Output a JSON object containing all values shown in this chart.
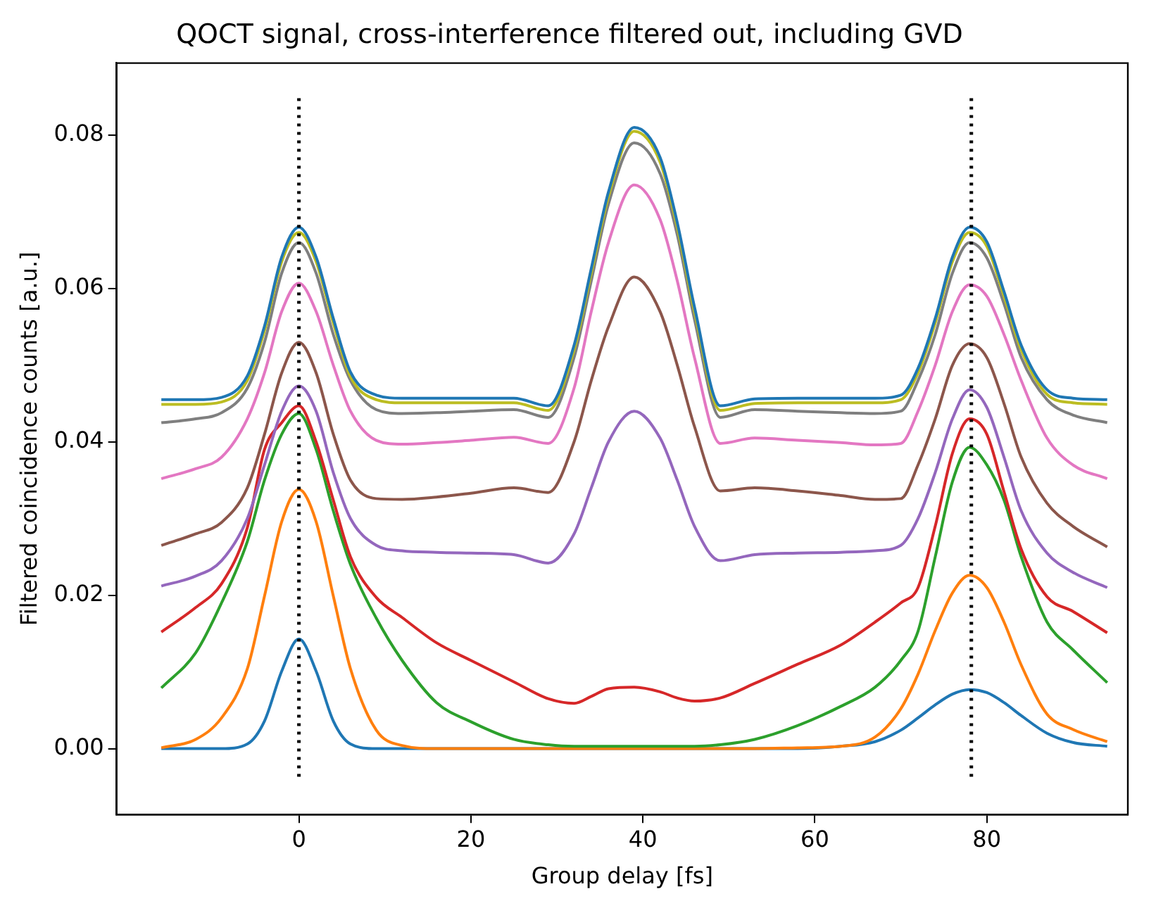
{
  "chart_data": {
    "type": "line",
    "title": "QOCT signal, cross-interference filtered out, including GVD",
    "xlabel": "Group delay [fs]",
    "ylabel": "Filtered coincidence counts [a.u.]",
    "x": [
      -16,
      -12,
      -9,
      -6,
      -4,
      -2,
      0,
      2,
      4,
      6,
      9,
      12,
      16,
      20,
      25,
      29,
      32,
      34,
      36,
      39,
      42,
      44,
      46,
      49,
      53,
      58,
      63,
      67,
      70,
      72,
      74,
      76,
      78,
      80,
      82,
      84,
      87,
      90,
      94
    ],
    "xlim": [
      -21.2,
      96.4
    ],
    "ylim": [
      -0.0086,
      0.0894
    ],
    "xticks": [
      0,
      20,
      40,
      60,
      80
    ],
    "yticks": [
      {
        "value": 0,
        "label": "0.00"
      },
      {
        "value": 0.02,
        "label": "0.02"
      },
      {
        "value": 0.04,
        "label": "0.04"
      },
      {
        "value": 0.06,
        "label": "0.06"
      },
      {
        "value": 0.08,
        "label": "0.08"
      }
    ],
    "grid": false,
    "marker": "none",
    "line_style": "solid",
    "ref_lines": [
      {
        "axis": "x",
        "value": 0,
        "color": "#000000",
        "line_style": "dotted"
      },
      {
        "axis": "x",
        "value": 78.2,
        "color": "#000000",
        "line_style": "dotted"
      }
    ],
    "series": [
      {
        "color": "#1f77b4",
        "values": [
          0,
          0,
          0,
          0.0006,
          0.0036,
          0.0101,
          0.0143,
          0.0101,
          0.0036,
          0.0006,
          0,
          0,
          0,
          0,
          0,
          0,
          0,
          0,
          0,
          0,
          0,
          0,
          0,
          0,
          0,
          0,
          0.0003,
          0.0009,
          0.0024,
          0.004,
          0.0057,
          0.0071,
          0.0077,
          0.0073,
          0.006,
          0.0043,
          0.002,
          0.0008,
          0.0003
        ]
      },
      {
        "color": "#ff7f0e",
        "values": [
          0.0001,
          0.0012,
          0.004,
          0.0104,
          0.0199,
          0.0296,
          0.0338,
          0.0296,
          0.0199,
          0.0104,
          0.0024,
          0.0004,
          0,
          0,
          0,
          0,
          0,
          0,
          0,
          0,
          0,
          0,
          0,
          0,
          0,
          0.0001,
          0.0003,
          0.0015,
          0.0052,
          0.0097,
          0.0154,
          0.0203,
          0.0226,
          0.021,
          0.0165,
          0.0109,
          0.0045,
          0.0025,
          0.0009
        ]
      },
      {
        "color": "#2ca02c",
        "values": [
          0.0079,
          0.0125,
          0.019,
          0.027,
          0.035,
          0.041,
          0.0437,
          0.039,
          0.031,
          0.024,
          0.017,
          0.0115,
          0.006,
          0.0035,
          0.0012,
          0.0005,
          0.0003,
          0.0003,
          0.0003,
          0.0003,
          0.0003,
          0.0003,
          0.0003,
          0.0005,
          0.0012,
          0.003,
          0.0055,
          0.008,
          0.0115,
          0.0153,
          0.025,
          0.0348,
          0.0393,
          0.037,
          0.0324,
          0.025,
          0.0165,
          0.0129,
          0.0086
        ]
      },
      {
        "color": "#d62728",
        "values": [
          0.0152,
          0.0184,
          0.0215,
          0.0288,
          0.039,
          0.0425,
          0.0447,
          0.04,
          0.0324,
          0.025,
          0.0197,
          0.0171,
          0.0138,
          0.0115,
          0.0087,
          0.0065,
          0.0059,
          0.0068,
          0.0078,
          0.008,
          0.0074,
          0.0066,
          0.0062,
          0.0066,
          0.0085,
          0.011,
          0.0135,
          0.0165,
          0.019,
          0.021,
          0.029,
          0.0385,
          0.043,
          0.041,
          0.0335,
          0.026,
          0.0198,
          0.0179,
          0.0151
        ]
      },
      {
        "color": "#9467bd",
        "values": [
          0.0212,
          0.0225,
          0.0245,
          0.03,
          0.037,
          0.044,
          0.0473,
          0.044,
          0.036,
          0.03,
          0.0265,
          0.0258,
          0.0256,
          0.0255,
          0.0253,
          0.0242,
          0.028,
          0.034,
          0.04,
          0.044,
          0.0405,
          0.035,
          0.029,
          0.0245,
          0.0253,
          0.0255,
          0.0256,
          0.0258,
          0.0265,
          0.03,
          0.036,
          0.043,
          0.0468,
          0.0445,
          0.038,
          0.031,
          0.0255,
          0.023,
          0.021
        ]
      },
      {
        "color": "#8c564b",
        "values": [
          0.0265,
          0.028,
          0.0295,
          0.034,
          0.041,
          0.049,
          0.053,
          0.049,
          0.041,
          0.035,
          0.0326,
          0.0325,
          0.0328,
          0.0333,
          0.034,
          0.0334,
          0.04,
          0.048,
          0.055,
          0.0615,
          0.057,
          0.05,
          0.042,
          0.0336,
          0.034,
          0.0336,
          0.033,
          0.0325,
          0.0326,
          0.037,
          0.043,
          0.05,
          0.0528,
          0.051,
          0.045,
          0.038,
          0.032,
          0.029,
          0.0263
        ]
      },
      {
        "color": "#e377c2",
        "values": [
          0.0352,
          0.0365,
          0.038,
          0.043,
          0.049,
          0.057,
          0.0607,
          0.057,
          0.05,
          0.044,
          0.0402,
          0.0397,
          0.0399,
          0.0402,
          0.0406,
          0.0398,
          0.047,
          0.057,
          0.066,
          0.0735,
          0.069,
          0.061,
          0.051,
          0.0398,
          0.0405,
          0.0402,
          0.0399,
          0.0396,
          0.0398,
          0.044,
          0.05,
          0.057,
          0.0605,
          0.059,
          0.054,
          0.048,
          0.0405,
          0.037,
          0.0352
        ]
      },
      {
        "color": "#7f7f7f",
        "values": [
          0.0425,
          0.043,
          0.0438,
          0.047,
          0.053,
          0.062,
          0.066,
          0.062,
          0.054,
          0.048,
          0.0442,
          0.0437,
          0.0438,
          0.044,
          0.0442,
          0.0432,
          0.051,
          0.061,
          0.071,
          0.079,
          0.075,
          0.067,
          0.056,
          0.0432,
          0.0442,
          0.044,
          0.0438,
          0.0437,
          0.044,
          0.048,
          0.054,
          0.062,
          0.066,
          0.064,
          0.058,
          0.051,
          0.0455,
          0.0435,
          0.0425
        ]
      },
      {
        "color": "#bcbd22",
        "values": [
          0.0449,
          0.0449,
          0.0452,
          0.048,
          0.0545,
          0.0635,
          0.0673,
          0.0635,
          0.0555,
          0.0485,
          0.0455,
          0.0451,
          0.0451,
          0.0451,
          0.0451,
          0.0441,
          0.052,
          0.062,
          0.072,
          0.0805,
          0.0765,
          0.068,
          0.057,
          0.0441,
          0.045,
          0.0451,
          0.0451,
          0.0451,
          0.0455,
          0.049,
          0.0555,
          0.0635,
          0.0673,
          0.0655,
          0.059,
          0.052,
          0.0462,
          0.0451,
          0.0449
        ]
      },
      {
        "color": "#1f77b4",
        "values": [
          0.0455,
          0.0455,
          0.0458,
          0.0486,
          0.0551,
          0.0641,
          0.068,
          0.0641,
          0.0561,
          0.0491,
          0.0461,
          0.0457,
          0.0457,
          0.0457,
          0.0457,
          0.0447,
          0.0526,
          0.0626,
          0.0726,
          0.081,
          0.0771,
          0.0686,
          0.0576,
          0.0447,
          0.0456,
          0.0457,
          0.0457,
          0.0457,
          0.0461,
          0.0496,
          0.0561,
          0.0641,
          0.068,
          0.0661,
          0.0596,
          0.0526,
          0.0468,
          0.0457,
          0.0455
        ]
      }
    ]
  }
}
